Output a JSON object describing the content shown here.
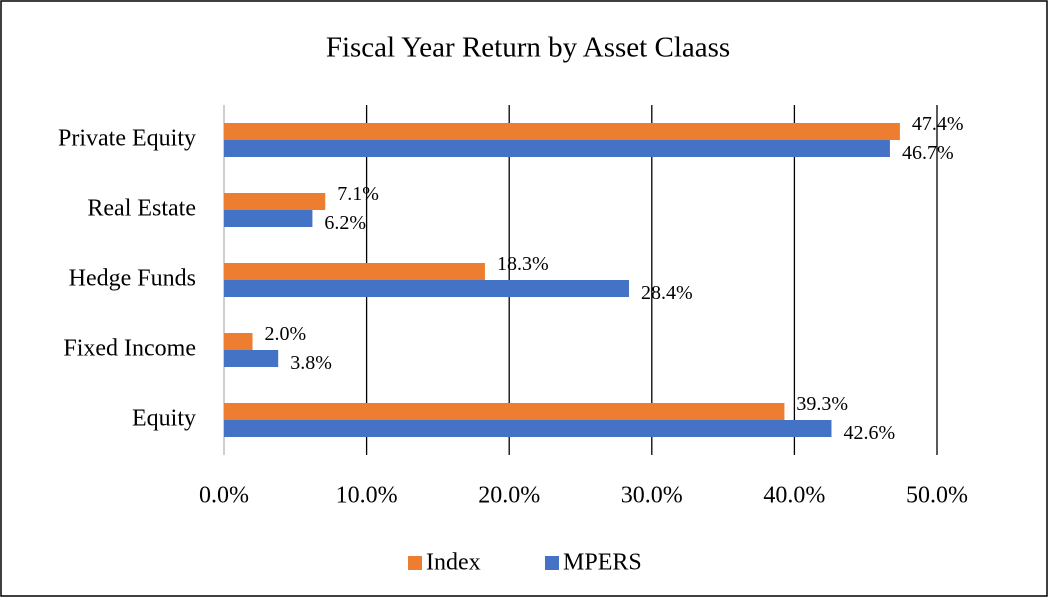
{
  "chart_data": {
    "type": "hbar",
    "title": "Fiscal Year Return by Asset Claass",
    "categories": [
      "Private Equity",
      "Real Estate",
      "Hedge Funds",
      "Fixed Income",
      "Equity"
    ],
    "series": [
      {
        "name": "Index",
        "color": "#ed7d31",
        "values": [
          47.4,
          7.1,
          18.3,
          2.0,
          39.3
        ],
        "value_labels": [
          "47.4%",
          "7.1%",
          "18.3%",
          "2.0%",
          "39.3%"
        ]
      },
      {
        "name": "MPERS",
        "color": "#4472c4",
        "values": [
          46.7,
          6.2,
          28.4,
          3.8,
          42.6
        ],
        "value_labels": [
          "46.7%",
          "6.2%",
          "28.4%",
          "3.8%",
          "42.6%"
        ]
      }
    ],
    "xlim": [
      0,
      50
    ],
    "xticks": [
      {
        "value": 0,
        "label": "0.0%"
      },
      {
        "value": 10,
        "label": "10.0%"
      },
      {
        "value": 20,
        "label": "20.0%"
      },
      {
        "value": 30,
        "label": "30.0%"
      },
      {
        "value": 40,
        "label": "40.0%"
      },
      {
        "value": 50,
        "label": "50.0%"
      }
    ],
    "grid": true,
    "legend": "bottom"
  }
}
